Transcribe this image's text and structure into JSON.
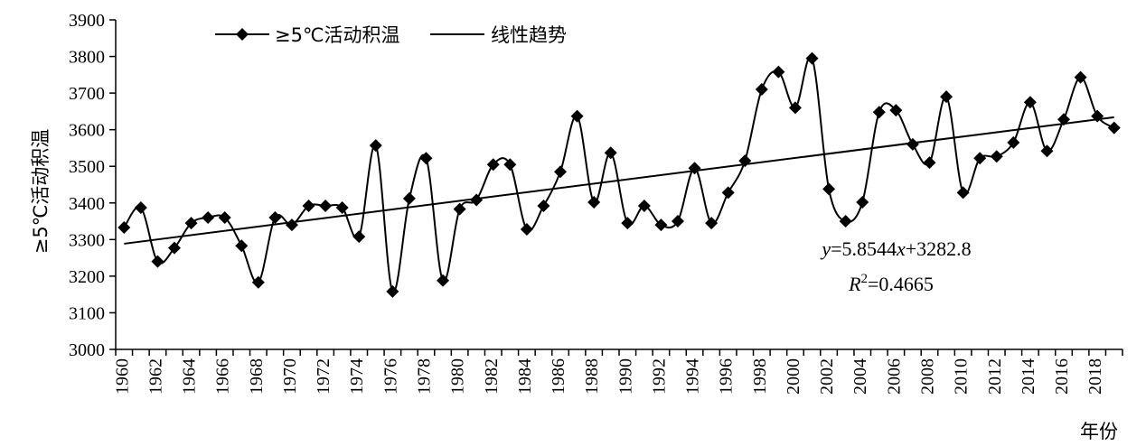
{
  "chart_data": {
    "type": "line",
    "title": "",
    "xlabel": "年份",
    "ylabel": "≥5℃活动积温",
    "xlim": [
      1960,
      2019
    ],
    "ylim": [
      3000,
      3900
    ],
    "y_ticks": [
      3000,
      3100,
      3200,
      3300,
      3400,
      3500,
      3600,
      3700,
      3800,
      3900
    ],
    "x_ticks": [
      1960,
      1962,
      1964,
      1966,
      1968,
      1970,
      1972,
      1974,
      1976,
      1978,
      1980,
      1982,
      1984,
      1986,
      1988,
      1990,
      1992,
      1994,
      1996,
      1998,
      2000,
      2002,
      2004,
      2006,
      2008,
      2010,
      2012,
      2014,
      2016,
      2018
    ],
    "legend_position": "top-left",
    "grid": false,
    "series": [
      {
        "name": "≥5℃活动积温",
        "marker": "diamond",
        "smooth": true,
        "color": "#000000",
        "x": [
          1960,
          1961,
          1962,
          1963,
          1964,
          1965,
          1966,
          1967,
          1968,
          1969,
          1970,
          1971,
          1972,
          1973,
          1974,
          1975,
          1976,
          1977,
          1978,
          1979,
          1980,
          1981,
          1982,
          1983,
          1984,
          1985,
          1986,
          1987,
          1988,
          1989,
          1990,
          1991,
          1992,
          1993,
          1994,
          1995,
          1996,
          1997,
          1998,
          1999,
          2000,
          2001,
          2002,
          2003,
          2004,
          2005,
          2006,
          2007,
          2008,
          2009,
          2010,
          2011,
          2012,
          2013,
          2014,
          2015,
          2016,
          2017,
          2018,
          2019
        ],
        "values": [
          3333,
          3387,
          3240,
          3277,
          3345,
          3360,
          3360,
          3283,
          3183,
          3360,
          3340,
          3392,
          3392,
          3387,
          3308,
          3557,
          3158,
          3412,
          3522,
          3188,
          3383,
          3408,
          3505,
          3505,
          3328,
          3392,
          3485,
          3637,
          3402,
          3537,
          3345,
          3392,
          3340,
          3350,
          3495,
          3345,
          3428,
          3515,
          3710,
          3758,
          3660,
          3795,
          3438,
          3350,
          3402,
          3648,
          3653,
          3560,
          3510,
          3690,
          3428,
          3522,
          3527,
          3565,
          3675,
          3542,
          3628,
          3743,
          3637,
          3605
        ]
      },
      {
        "name": "线性趋势",
        "type": "trendline",
        "slope": 5.8544,
        "intercept": 3282.8,
        "color": "#000000"
      }
    ],
    "annotations": {
      "equation": "y=5.8544x+3282.8",
      "r_squared": "R²=0.4665",
      "eq_y": "y",
      "eq_rest_1": "=5.8544",
      "eq_x": "x",
      "eq_rest_2": "+3282.8",
      "r_label": "R",
      "r_sup": "2",
      "r_value": "=0.4665"
    }
  }
}
